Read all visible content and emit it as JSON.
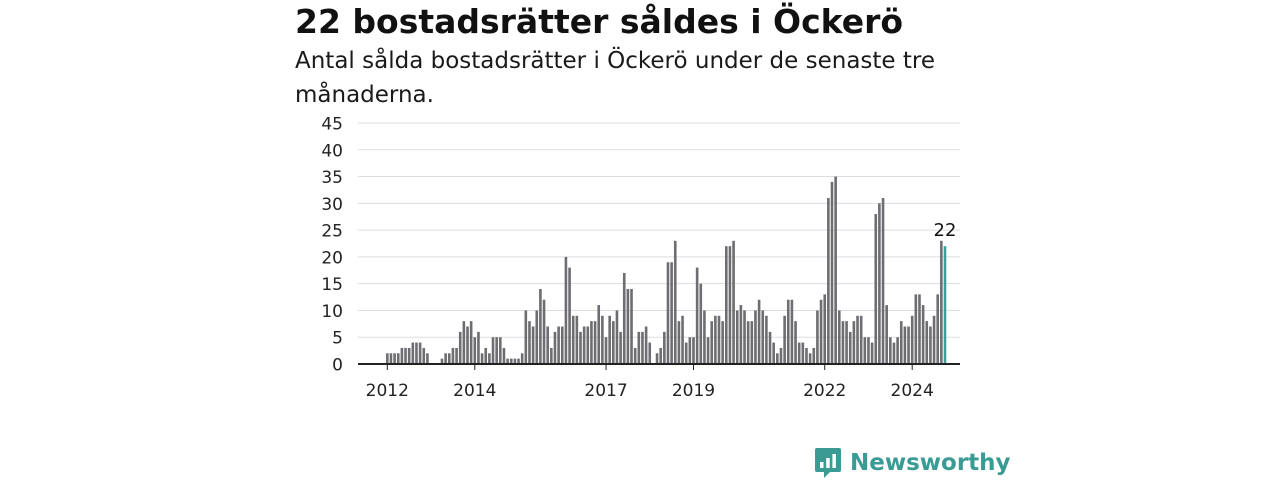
{
  "title": "22 bostadsrätter såldes i Öckerö",
  "subtitle": "Antal sålda bostadsrätter i Öckerö under de senaste tre månaderna.",
  "brand": "Newsworthy",
  "colors": {
    "bar": "#6d6d72",
    "highlight": "#3aa198",
    "grid": "#dddddd",
    "axis": "#222222",
    "brand": "#3a9a94"
  },
  "chart_data": {
    "type": "bar",
    "title": "22 bostadsrätter såldes i Öckerö",
    "subtitle": "Antal sålda bostadsrätter i Öckerö under de senaste tre månaderna.",
    "frequency": "monthly",
    "x_start": "2011-06",
    "ylim": [
      0,
      45
    ],
    "yticks": [
      0,
      5,
      10,
      15,
      20,
      25,
      30,
      35,
      40,
      45
    ],
    "xticks": [
      {
        "date": "2012-01",
        "label": "2012"
      },
      {
        "date": "2014-01",
        "label": "2014"
      },
      {
        "date": "2017-01",
        "label": "2017"
      },
      {
        "date": "2019-01",
        "label": "2019"
      },
      {
        "date": "2022-01",
        "label": "2022"
      },
      {
        "date": "2024-01",
        "label": "2024"
      }
    ],
    "grid": true,
    "values": [
      0,
      0,
      0,
      0,
      0,
      0,
      0,
      2,
      2,
      2,
      2,
      3,
      3,
      3,
      4,
      4,
      4,
      3,
      2,
      0,
      0,
      0,
      1,
      2,
      2,
      3,
      3,
      6,
      8,
      7,
      8,
      5,
      6,
      2,
      3,
      2,
      5,
      5,
      5,
      3,
      1,
      1,
      1,
      1,
      2,
      10,
      8,
      7,
      10,
      14,
      12,
      7,
      3,
      6,
      7,
      7,
      20,
      18,
      9,
      9,
      6,
      7,
      7,
      8,
      8,
      11,
      9,
      5,
      9,
      8,
      10,
      6,
      17,
      14,
      14,
      3,
      6,
      6,
      7,
      4,
      0,
      2,
      3,
      6,
      19,
      19,
      23,
      8,
      9,
      4,
      5,
      5,
      18,
      15,
      10,
      5,
      8,
      9,
      9,
      8,
      22,
      22,
      23,
      10,
      11,
      10,
      8,
      8,
      10,
      12,
      10,
      9,
      6,
      4,
      2,
      3,
      9,
      12,
      12,
      8,
      4,
      4,
      3,
      2,
      3,
      10,
      12,
      13,
      31,
      34,
      35,
      10,
      8,
      8,
      6,
      8,
      9,
      9,
      5,
      5,
      4,
      28,
      30,
      31,
      11,
      5,
      4,
      5,
      8,
      7,
      7,
      9,
      13,
      13,
      11,
      8,
      7,
      9,
      13,
      23,
      22
    ],
    "highlight_index": 160,
    "highlight_label": "22"
  }
}
